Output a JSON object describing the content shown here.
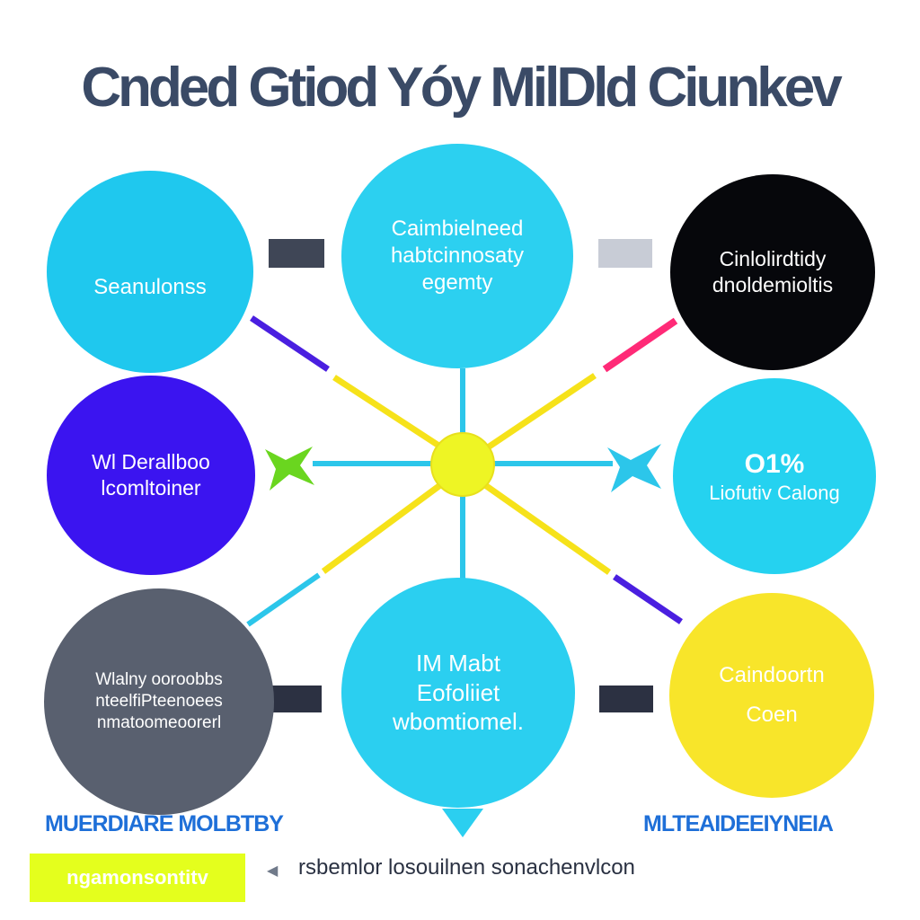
{
  "title": "Cnded Gtiod Yóy MilDld Ciunkev",
  "nodes": {
    "n1": {
      "lines": [
        "Seanulonss"
      ],
      "color": "#1fc8ee"
    },
    "n2": {
      "lines": [
        "Caimbielneed",
        "habtcinnosaty",
        "egemty"
      ],
      "color": "#2cd0f0"
    },
    "n3": {
      "lines": [
        "Cinlolirdtidy",
        "dnoldemioltis"
      ],
      "color": "#06070b"
    },
    "n4": {
      "lines": [
        "Wl Derallboo",
        "lcomltoiner"
      ],
      "color": "#3b14f0"
    },
    "n5": {
      "lines": [
        "O1%",
        "Liofutiv Calong"
      ],
      "color": "#25d2f0"
    },
    "n6": {
      "lines": [
        "Wlalny ooroobbs",
        "nteelfiPteenoees",
        "nmatoomeoorerl"
      ],
      "color": "#59606f"
    },
    "n7": {
      "lines": [
        "IM Mabt",
        "Eofoliiet",
        "wbomtiomel."
      ],
      "color": "#2bcff0"
    },
    "n8": {
      "lines": [
        "Caindoortn",
        "Coen"
      ],
      "color": "#f8e52a"
    }
  },
  "icons": {
    "node1": "card-icon",
    "left_star": "star-icon",
    "right_star": "star-icon",
    "footer_arrow": "arrow-left-icon"
  },
  "bottom_labels": {
    "left": "MUERDIARE MOLBTBY",
    "right": "MLTEAIDEEIYNEIA"
  },
  "footer": {
    "badge": "ngamonsontitv",
    "text": "rsbemlor losouilnen sonachenvlcon"
  },
  "colors": {
    "accent_yellow": "#f4e41f",
    "accent_cyan": "#2bcff0",
    "accent_purple": "#3b14f0",
    "accent_pink": "#ff2a77",
    "accent_green": "#6ad61f"
  }
}
